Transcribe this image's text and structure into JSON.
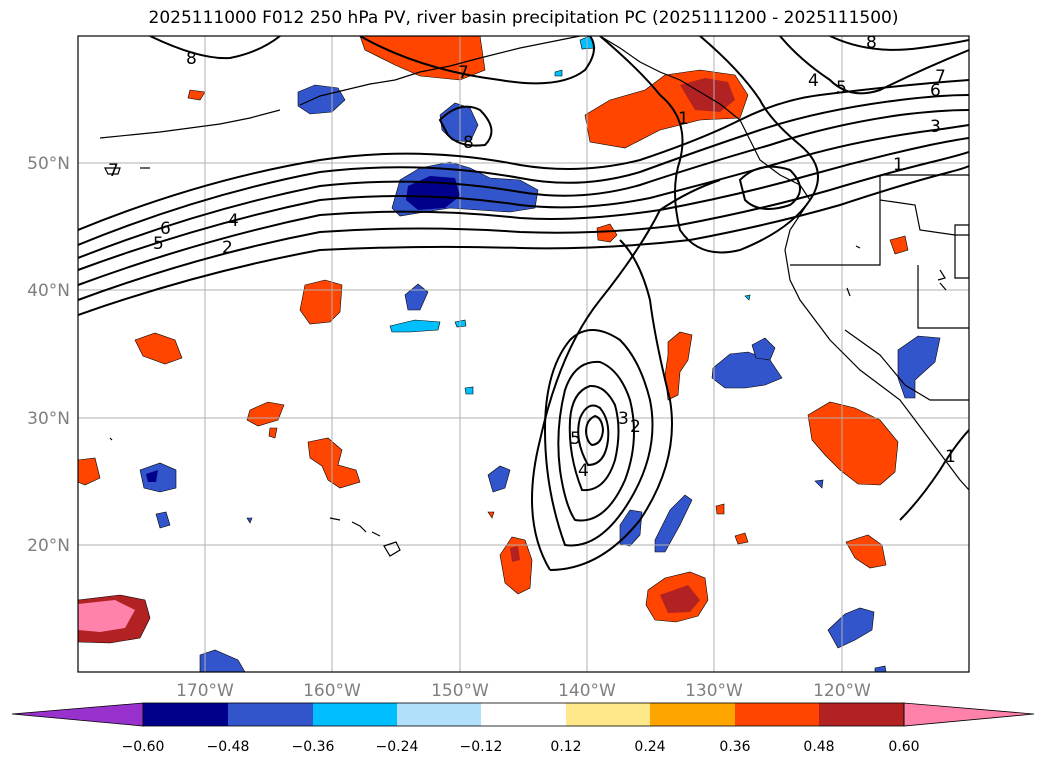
{
  "title": "2025111000 F012 250 hPa PV, river basin precipitation PC (2025111200 - 2025111500)",
  "lat_labels": [
    "50°N",
    "40°N",
    "30°N",
    "20°N"
  ],
  "lon_labels": [
    "170°W",
    "160°W",
    "150°W",
    "140°W",
    "130°W",
    "120°W"
  ],
  "colorbar": {
    "ticks": [
      "−0.60",
      "−0.48",
      "−0.36",
      "−0.24",
      "−0.12",
      "0.12",
      "0.24",
      "0.36",
      "0.48",
      "0.60"
    ],
    "colors": [
      "#9932cc",
      "#00008b",
      "#3355cc",
      "#00bfff",
      "#b0e0fa",
      "#ffffff",
      "#ffe88a",
      "#ffa500",
      "#ff4500",
      "#b22222",
      "#ff82ab"
    ]
  },
  "pv_contour_labels": [
    "8",
    "7",
    "8",
    "7",
    "6",
    "3",
    "1",
    "7",
    "6",
    "5",
    "4",
    "2",
    "8",
    "4",
    "5",
    "1",
    "3",
    "2",
    "5",
    "4",
    "1"
  ],
  "colors": {
    "land_line": "#000000",
    "grid": "#b0b0b0",
    "contour": "#000000"
  }
}
